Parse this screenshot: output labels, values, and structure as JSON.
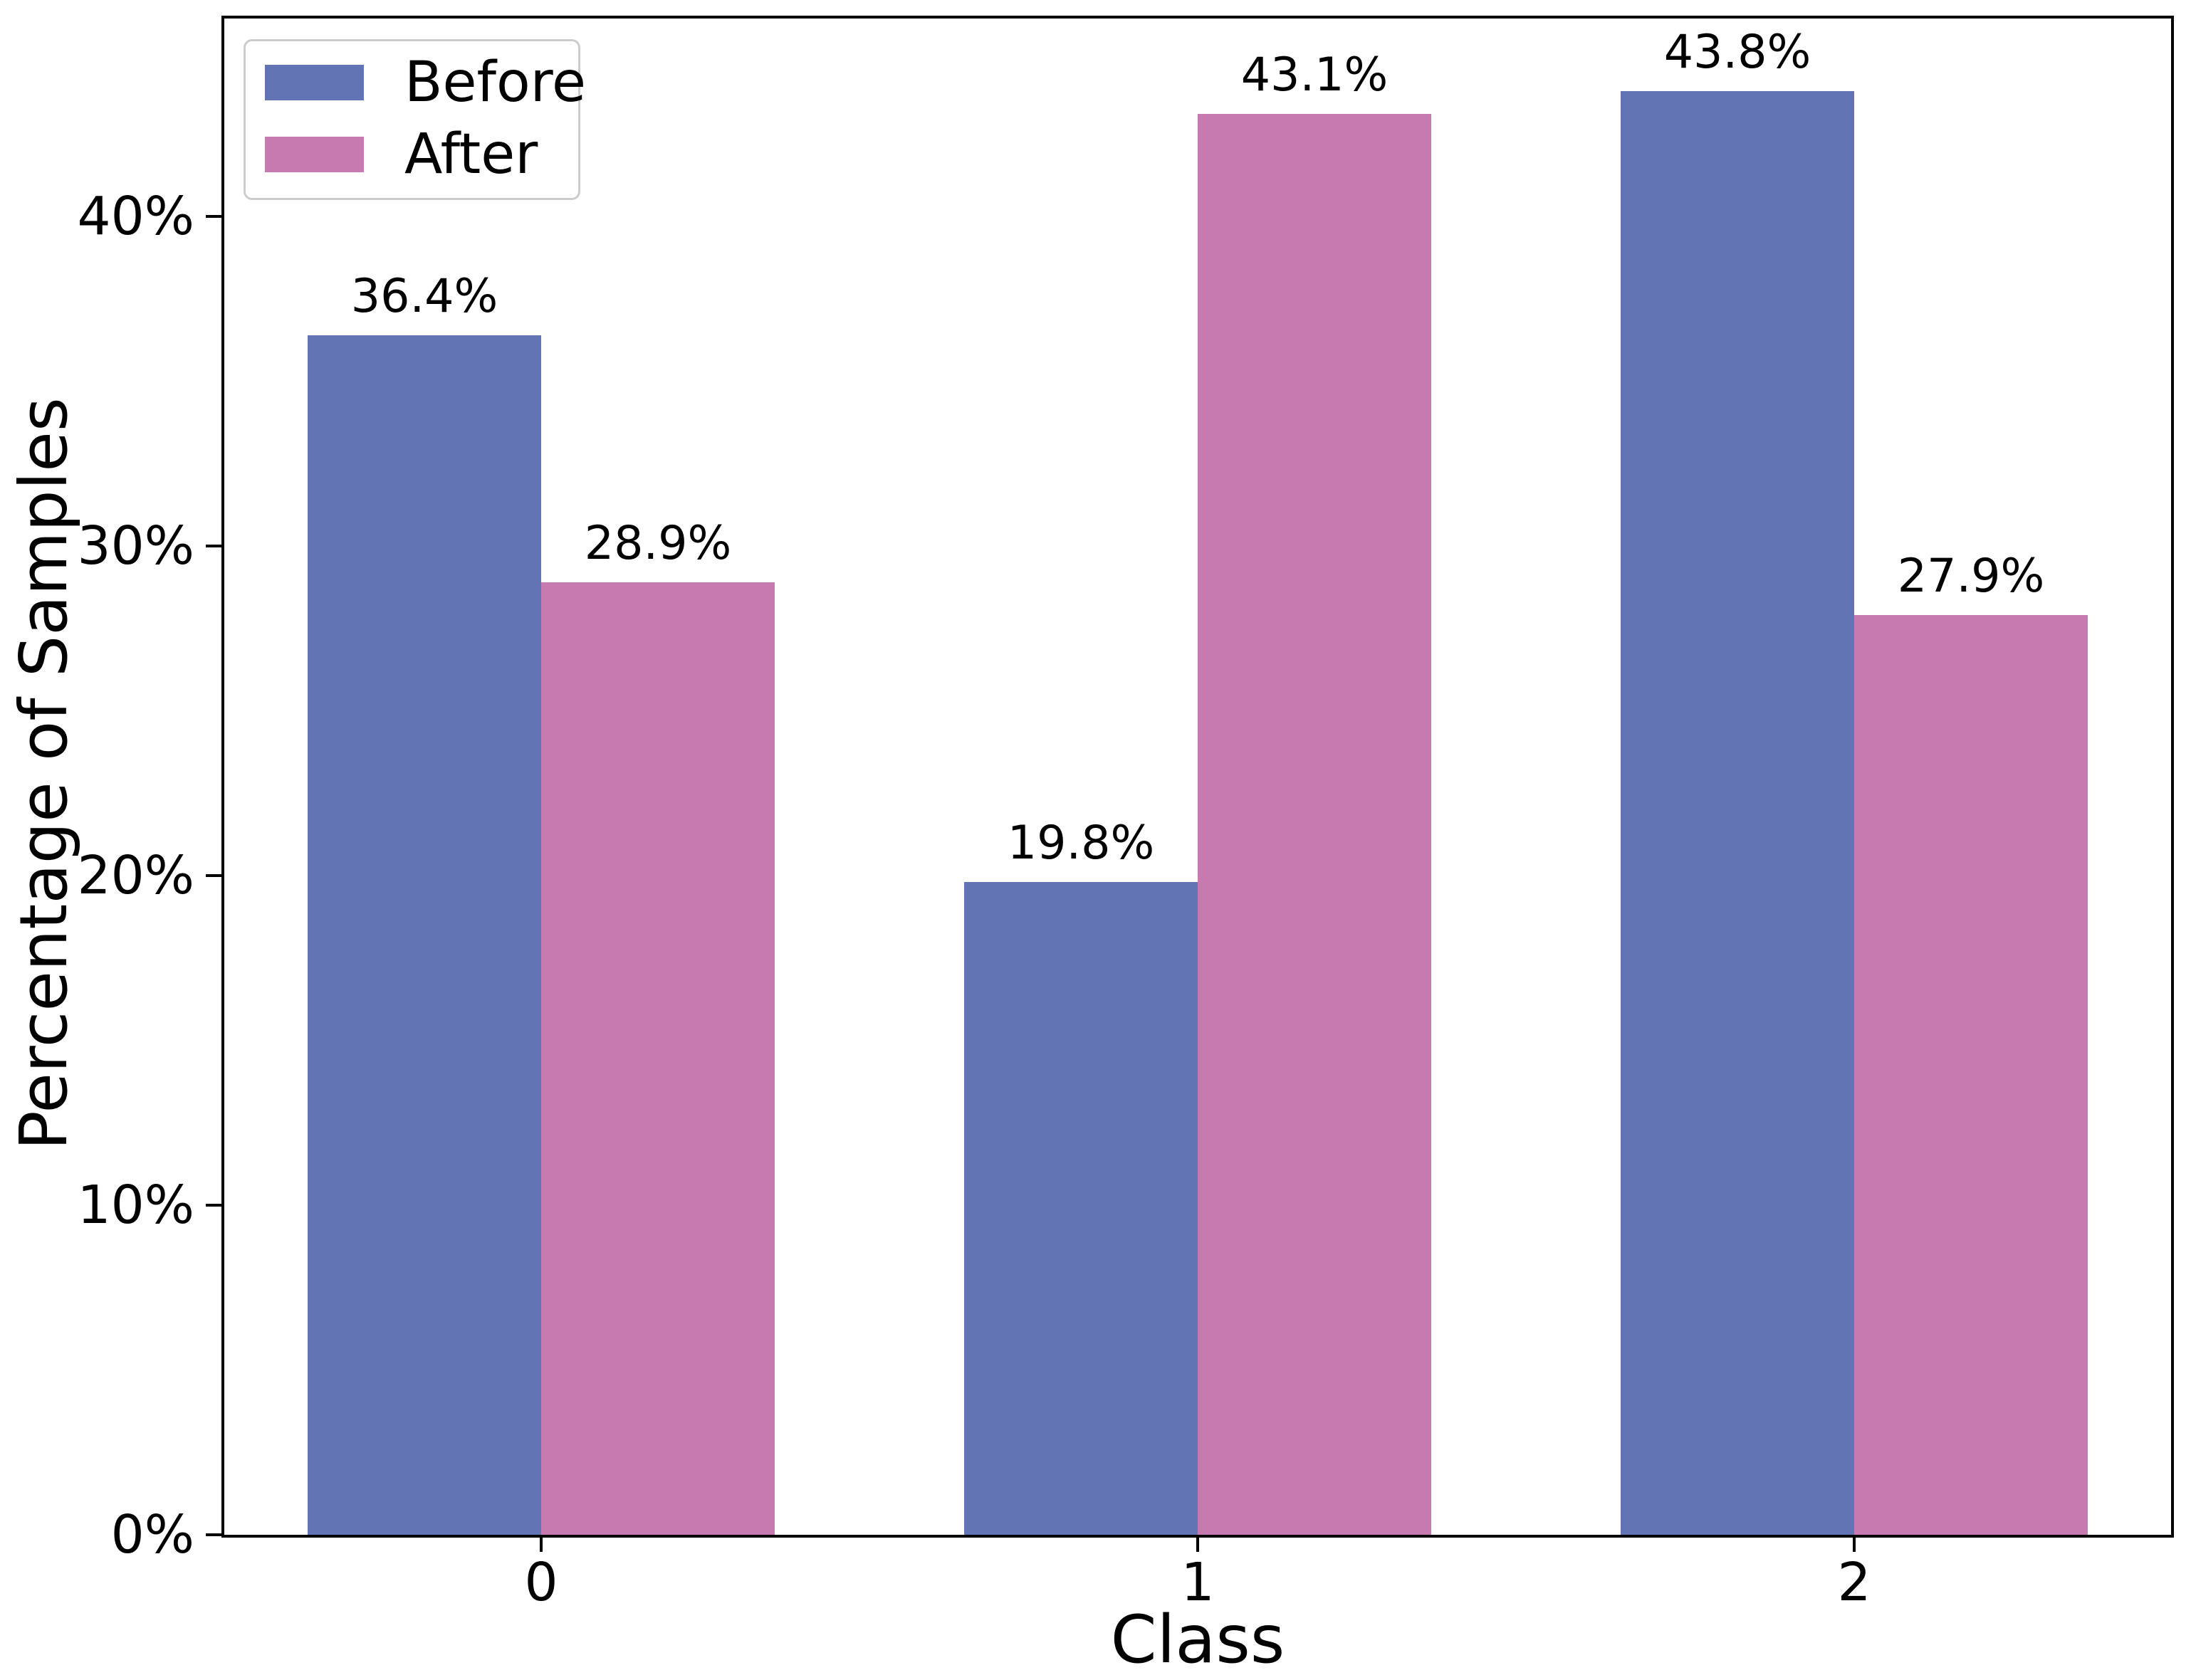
{
  "chart_data": {
    "type": "bar",
    "title": "",
    "xlabel": "Class",
    "ylabel": "Percentage of Samples",
    "categories": [
      "0",
      "1",
      "2"
    ],
    "series": [
      {
        "name": "Before",
        "color": "#6274B4",
        "values": [
          36.4,
          19.8,
          43.8
        ],
        "bar_labels": [
          "36.4%",
          "19.8%",
          "43.8%"
        ]
      },
      {
        "name": "After",
        "color": "#C77AB0",
        "values": [
          28.9,
          43.1,
          27.9
        ],
        "bar_labels": [
          "28.9%",
          "43.1%",
          "27.9%"
        ]
      }
    ],
    "y_ticks": [
      {
        "value": 0,
        "label": "0%"
      },
      {
        "value": 10,
        "label": "10%"
      },
      {
        "value": 20,
        "label": "20%"
      },
      {
        "value": 30,
        "label": "30%"
      },
      {
        "value": 40,
        "label": "40%"
      }
    ],
    "ylim": [
      0,
      46
    ],
    "grid": false,
    "legend": {
      "position": "upper-left",
      "entries": [
        "Before",
        "After"
      ]
    }
  },
  "colors": {
    "axis": "#000000",
    "text": "#000000",
    "legend_border": "#CCCCCC",
    "background": "#FFFFFF"
  }
}
